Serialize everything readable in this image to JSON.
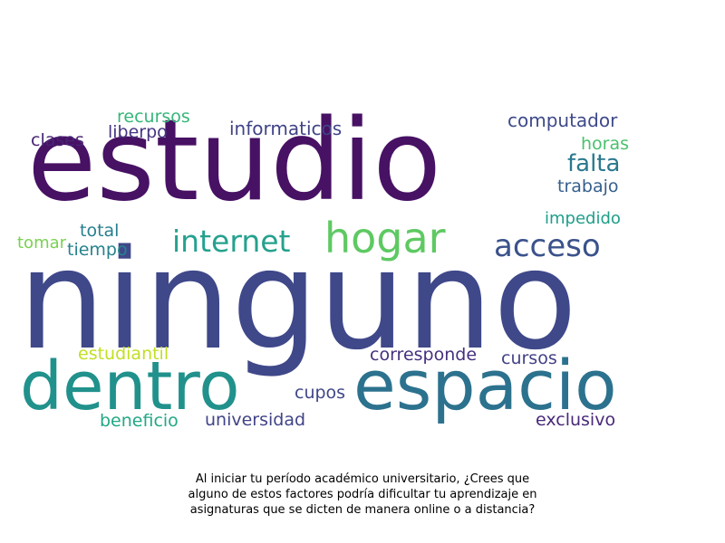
{
  "words": [
    {
      "text": "ninguno",
      "color": "#3f4889"
    },
    {
      "text": "estudio",
      "color": "#471164"
    },
    {
      "text": "espacio",
      "color": "#2c728e"
    },
    {
      "text": "dentro",
      "color": "#21918c"
    },
    {
      "text": "hogar",
      "color": "#5ec962"
    },
    {
      "text": "internet",
      "color": "#25a18e"
    },
    {
      "text": "acceso",
      "color": "#3b528b"
    },
    {
      "text": "falta",
      "color": "#2a788e"
    },
    {
      "text": "computador",
      "color": "#3e4a89"
    },
    {
      "text": "informaticos",
      "color": "#404387"
    },
    {
      "text": "recursos",
      "color": "#35b779"
    },
    {
      "text": "clases",
      "color": "#482475"
    },
    {
      "text": "liberpo",
      "color": "#453581"
    },
    {
      "text": "horas",
      "color": "#4ac16d"
    },
    {
      "text": "trabajo",
      "color": "#355f8d"
    },
    {
      "text": "impedido",
      "color": "#1f9e89"
    },
    {
      "text": "total",
      "color": "#277f8e"
    },
    {
      "text": "tomar",
      "color": "#7ad151"
    },
    {
      "text": "tiempo",
      "color": "#26828e"
    },
    {
      "text": "estudiantil",
      "color": "#c2df23"
    },
    {
      "text": "corresponde",
      "color": "#46307e"
    },
    {
      "text": "cursos",
      "color": "#424186"
    },
    {
      "text": "cupos",
      "color": "#3f4788"
    },
    {
      "text": "beneficio",
      "color": "#22a884"
    },
    {
      "text": "universidad",
      "color": "#414487"
    },
    {
      "text": "exclusivo",
      "color": "#482979"
    }
  ],
  "caption": {
    "line1": "Al iniciar tu período académico universitario, ¿Crees que",
    "line2": "alguno de estos factores podría dificultar tu aprendizaje en",
    "line3": "asignaturas que se dicten de manera online o a distancia?"
  }
}
